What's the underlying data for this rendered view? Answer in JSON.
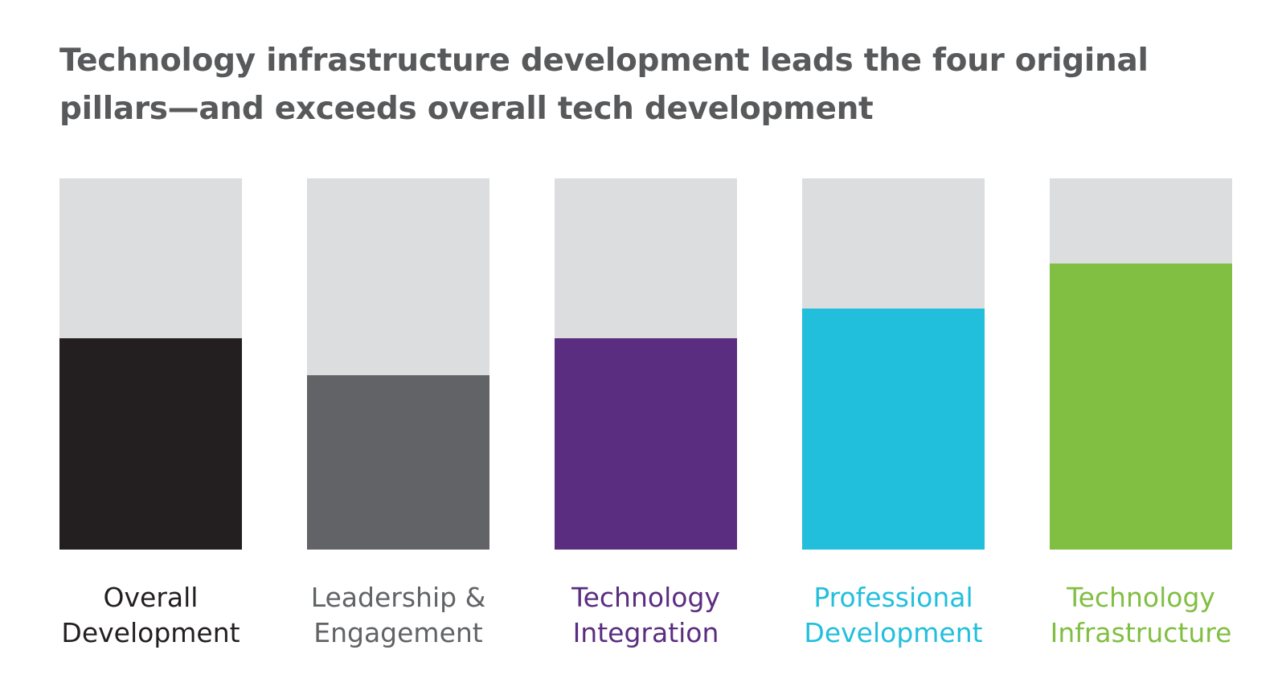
{
  "chart_data": {
    "type": "bar",
    "title": "Technology infrastructure development leads the four original pillars—and exceeds overall tech development",
    "categories": [
      "Overall Development",
      "Leadership & Engagement",
      "Technology Integration",
      "Professional Development",
      "Technology Infrastructure"
    ],
    "values": [
      57,
      47,
      57,
      65,
      77
    ],
    "colors": [
      "#231f20",
      "#626366",
      "#5a2d81",
      "#22bfdd",
      "#80bf41"
    ],
    "ylim": [
      0,
      100
    ]
  }
}
